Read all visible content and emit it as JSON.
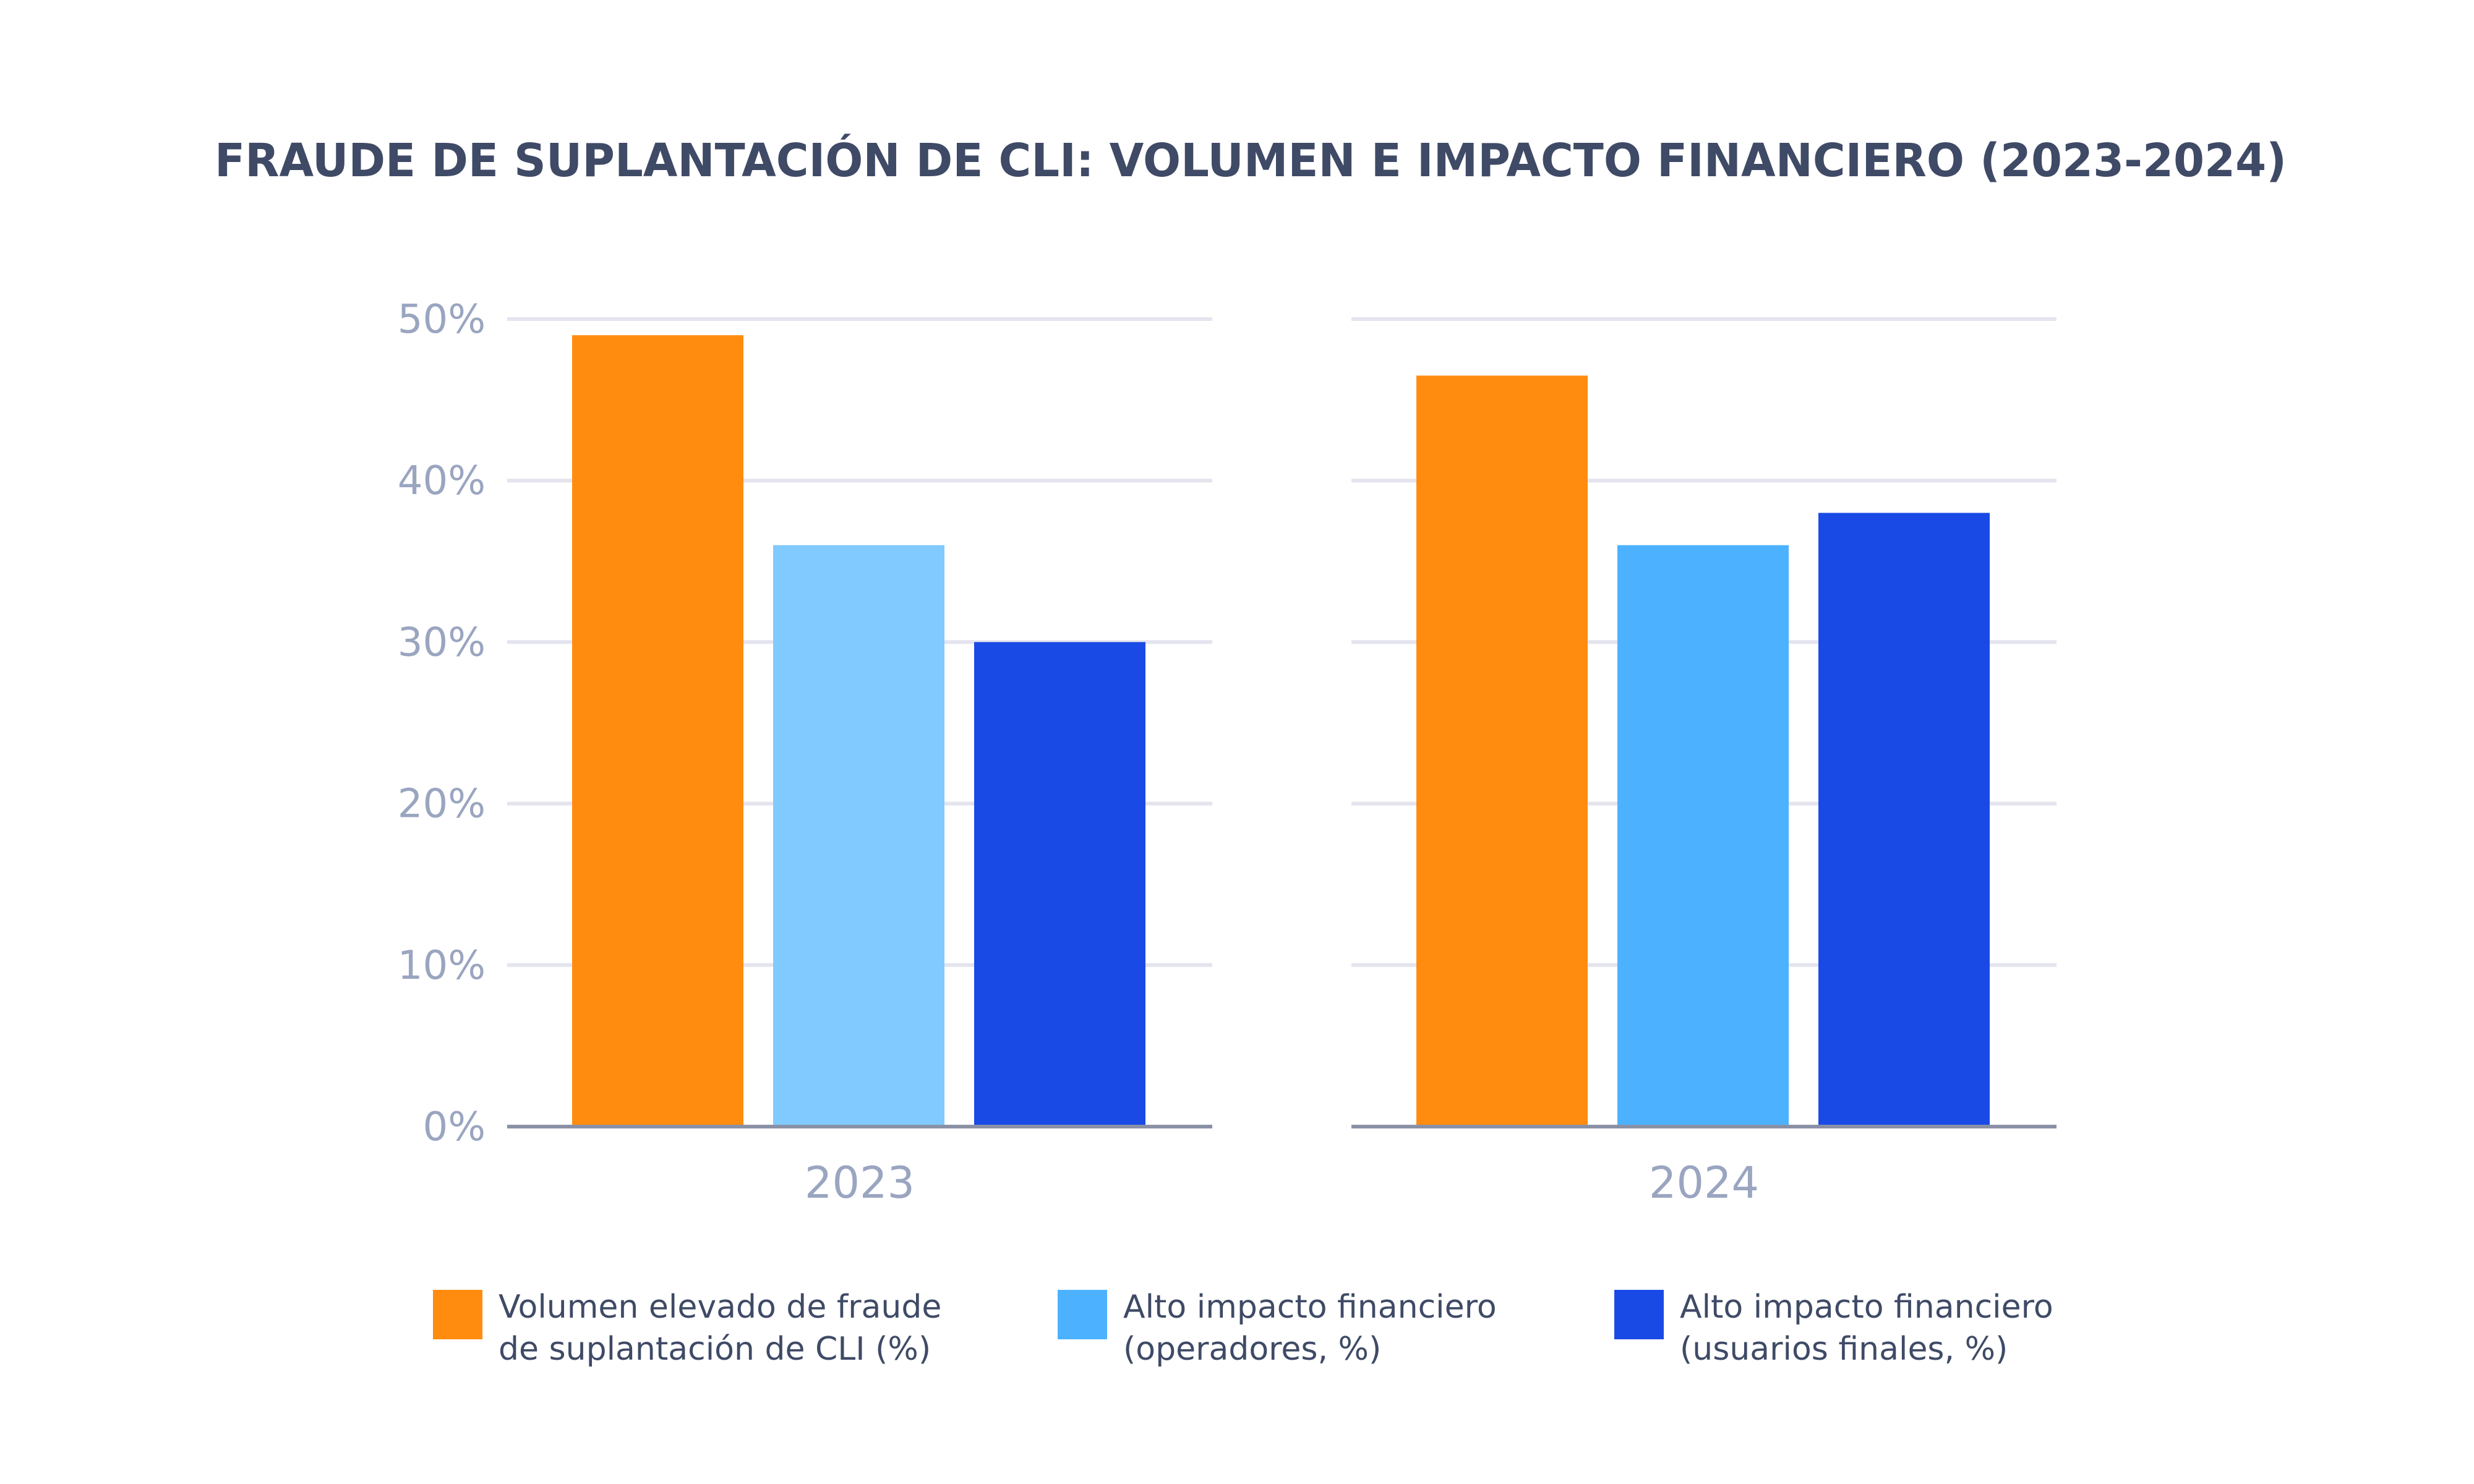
{
  "chart_data": {
    "type": "bar",
    "title": "FRAUDE DE SUPLANTACIÓN DE CLI: VOLUMEN E IMPACTO FINANCIERO (2023-2024)",
    "categories": [
      "2023",
      "2024"
    ],
    "series": [
      {
        "name": "Volumen elevado de fraude de suplantación de CLI (%)",
        "values": [
          49,
          46.5
        ],
        "color": "#ff8c0f"
      },
      {
        "name": "Alto impacto financiero (operadores, %)",
        "values": [
          36,
          36
        ],
        "colors": [
          "#80caff",
          "#4cb2ff"
        ],
        "color": "#4cb2ff"
      },
      {
        "name": "Alto impacto financiero (usuarios finales, %)",
        "values": [
          30,
          38
        ],
        "color": "#1a4ae6"
      }
    ],
    "yticks": [
      "0%",
      "10%",
      "20%",
      "30%",
      "40%",
      "50%"
    ],
    "ylim": [
      0,
      50
    ],
    "xlabel": "",
    "ylabel": "",
    "grid": true,
    "legend_position": "bottom"
  },
  "colors": {
    "title": "#3f4a66",
    "tick": "#9aa5c0",
    "grid": "#e3e4ee",
    "axis": "#8a91a6",
    "legend_text": "#3f4a66"
  }
}
